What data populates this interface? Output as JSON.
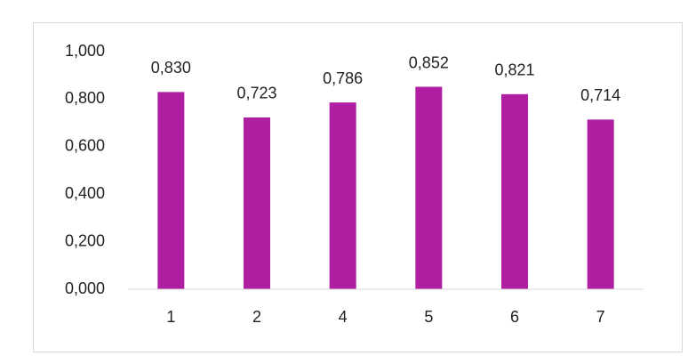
{
  "chart_data": {
    "type": "bar",
    "categories": [
      "1",
      "2",
      "4",
      "5",
      "6",
      "7"
    ],
    "values": [
      0.83,
      0.723,
      0.786,
      0.852,
      0.821,
      0.714
    ],
    "value_labels": [
      "0,830",
      "0,723",
      "0,786",
      "0,852",
      "0,821",
      "0,714"
    ],
    "color": "#b01fa1",
    "ylim": [
      0,
      1
    ],
    "yticks": [
      {
        "value": 0,
        "label": "0,000"
      },
      {
        "value": 0.2,
        "label": "0,200"
      },
      {
        "value": 0.4,
        "label": "0,400"
      },
      {
        "value": 0.6,
        "label": "0,600"
      },
      {
        "value": 0.8,
        "label": "0,800"
      },
      {
        "value": 1,
        "label": "1,000"
      }
    ],
    "grid": false
  }
}
